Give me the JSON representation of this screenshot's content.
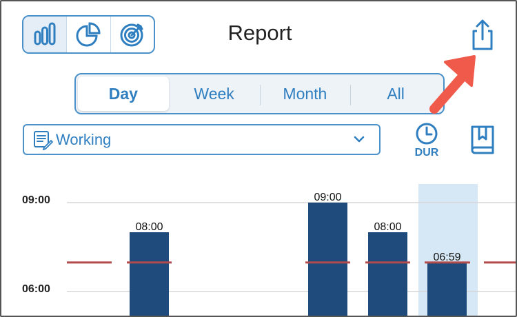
{
  "header": {
    "title": "Report",
    "view_buttons": [
      {
        "icon": "bar-chart-icon",
        "active": true
      },
      {
        "icon": "pie-chart-icon",
        "active": false
      },
      {
        "icon": "target-icon",
        "active": false
      }
    ],
    "share_icon": "share-icon"
  },
  "periods": {
    "tabs": [
      "Day",
      "Week",
      "Month",
      "All"
    ],
    "selected": "Day"
  },
  "filter": {
    "selected": "Working",
    "icon": "list-edit-icon",
    "chevron_icon": "chevron-down-icon"
  },
  "toolbar": {
    "dur_label": "DUR",
    "dur_icon": "clock-icon",
    "book_icon": "bookmark-book-icon"
  },
  "colors": {
    "accent": "#2f7fc0",
    "bar": "#1f4a7c",
    "target_line": "#b24b4b",
    "highlight": "#d6e8f6",
    "annotation_arrow": "#f05a4a"
  },
  "chart_data": {
    "type": "bar",
    "y_ticks": [
      "09:00",
      "06:00"
    ],
    "ylim_hours": [
      0,
      9
    ],
    "target_hours": 6.98,
    "bars": [
      {
        "label": "08:00",
        "hours": 8.0,
        "highlighted": false
      },
      {
        "label": "09:00",
        "hours": 9.0,
        "highlighted": false
      },
      {
        "label": "08:00",
        "hours": 8.0,
        "highlighted": false
      },
      {
        "label": "06:59",
        "hours": 6.98,
        "highlighted": true
      }
    ]
  }
}
